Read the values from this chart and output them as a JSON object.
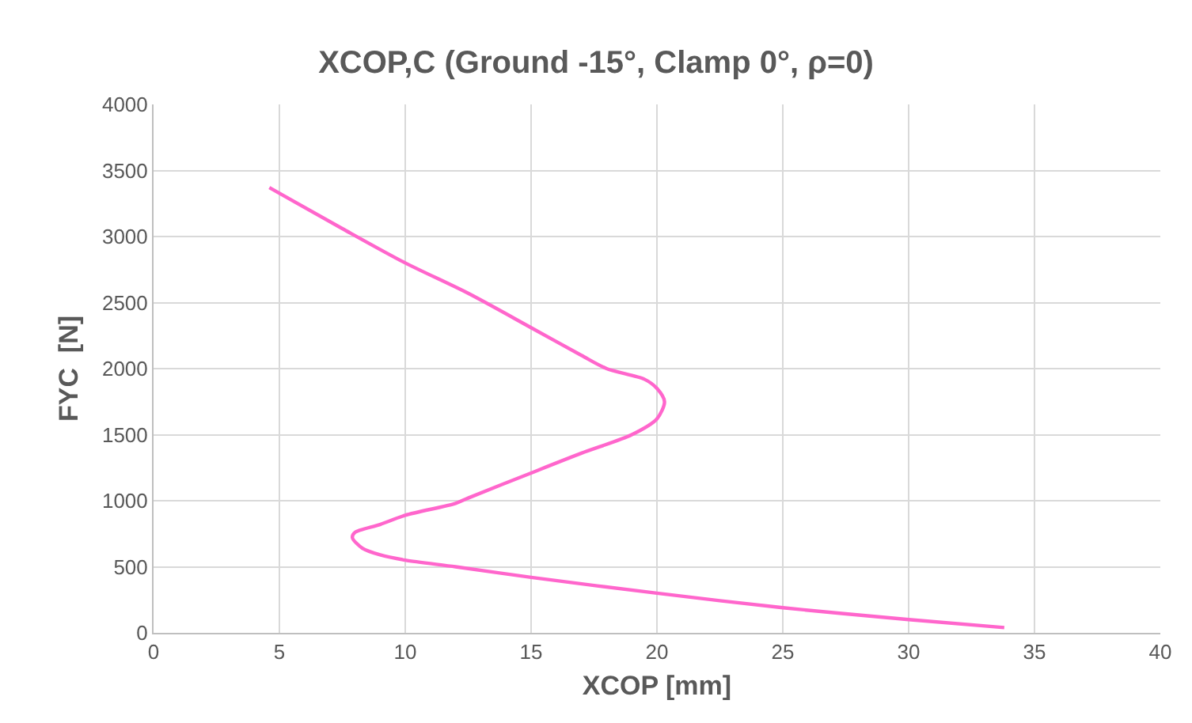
{
  "chart_data": {
    "type": "line",
    "title": "XCOP,C (Ground -15°, Clamp 0°, ρ=0)",
    "xlabel": "XCOP [mm]",
    "ylabel": "FYC  [N]",
    "series": [
      {
        "color": "#ff66cc",
        "x": [
          33.8,
          30,
          25,
          20,
          15,
          12,
          10,
          9,
          8.3,
          7.9,
          8,
          9,
          10,
          12,
          12.5,
          15,
          17,
          19,
          20,
          20.3,
          20,
          19.5,
          18,
          17,
          15,
          12.5,
          10,
          7.5,
          4.6
        ],
        "values": [
          40,
          100,
          190,
          300,
          420,
          500,
          550,
          590,
          640,
          720,
          760,
          820,
          890,
          980,
          1020,
          1210,
          1360,
          1500,
          1620,
          1750,
          1850,
          1920,
          2000,
          2100,
          2310,
          2570,
          2800,
          3060,
          3370
        ]
      }
    ],
    "xlim": [
      0,
      40
    ],
    "xticks": [
      0,
      5,
      10,
      15,
      20,
      25,
      30,
      35,
      40
    ],
    "ylim": [
      0,
      4000
    ],
    "yticks": [
      0,
      500,
      1000,
      1500,
      2000,
      2500,
      3000,
      3500,
      4000
    ],
    "grid": true,
    "marker": "none",
    "line_style": "solid"
  }
}
